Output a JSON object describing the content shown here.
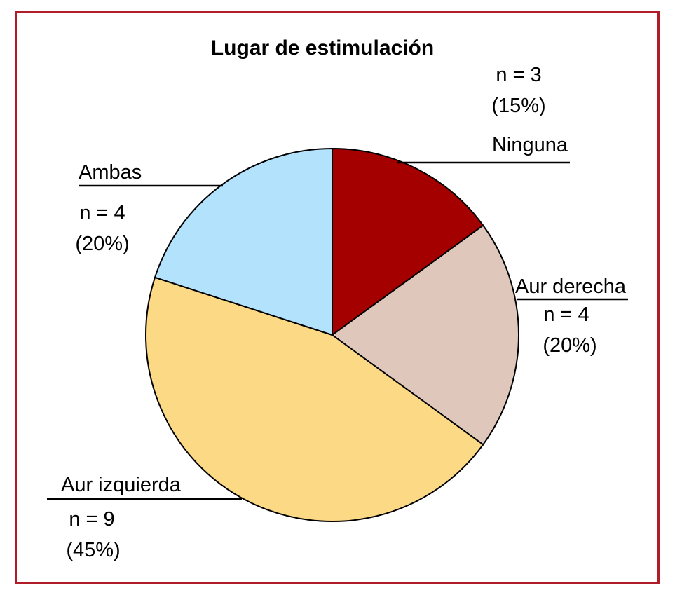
{
  "chart_data": {
    "type": "pie",
    "title": "Lugar de estimulación",
    "categories": [
      "Ninguna",
      "Aur derecha",
      "Aur izquierda",
      "Ambas"
    ],
    "values": [
      3,
      4,
      9,
      4
    ],
    "percent_labels": [
      "(15%)",
      "(20%)",
      "(45%)",
      "(20%)"
    ],
    "count_labels": [
      "n = 3",
      "n = 4",
      "n = 9",
      "n = 4"
    ],
    "colors": [
      "#a40000",
      "#dfc8bb",
      "#fcd985",
      "#b3e2fd"
    ],
    "start": "top, clockwise",
    "legend": "none (direct labels)"
  },
  "frame_color": "#b01c28"
}
